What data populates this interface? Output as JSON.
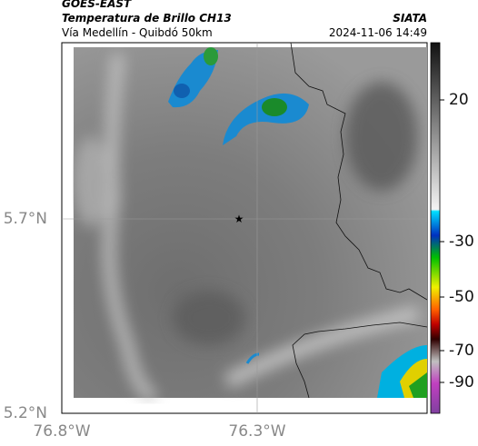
{
  "header": {
    "source": "GOES-EAST",
    "title": "Temperatura de Brillo CH13",
    "subtitle": "Vía Medellín - Quibdó 50km",
    "brand": "SIATA",
    "datetime": "2024-11-06 14:49"
  },
  "map": {
    "lat_ticks": [
      "5.7°N",
      "5.2°N"
    ],
    "lon_ticks": [
      "76.8°W",
      "76.3°W"
    ]
  },
  "colorbar": {
    "ticks": [
      "20",
      "-30",
      "-50",
      "-70",
      "-90"
    ]
  }
}
